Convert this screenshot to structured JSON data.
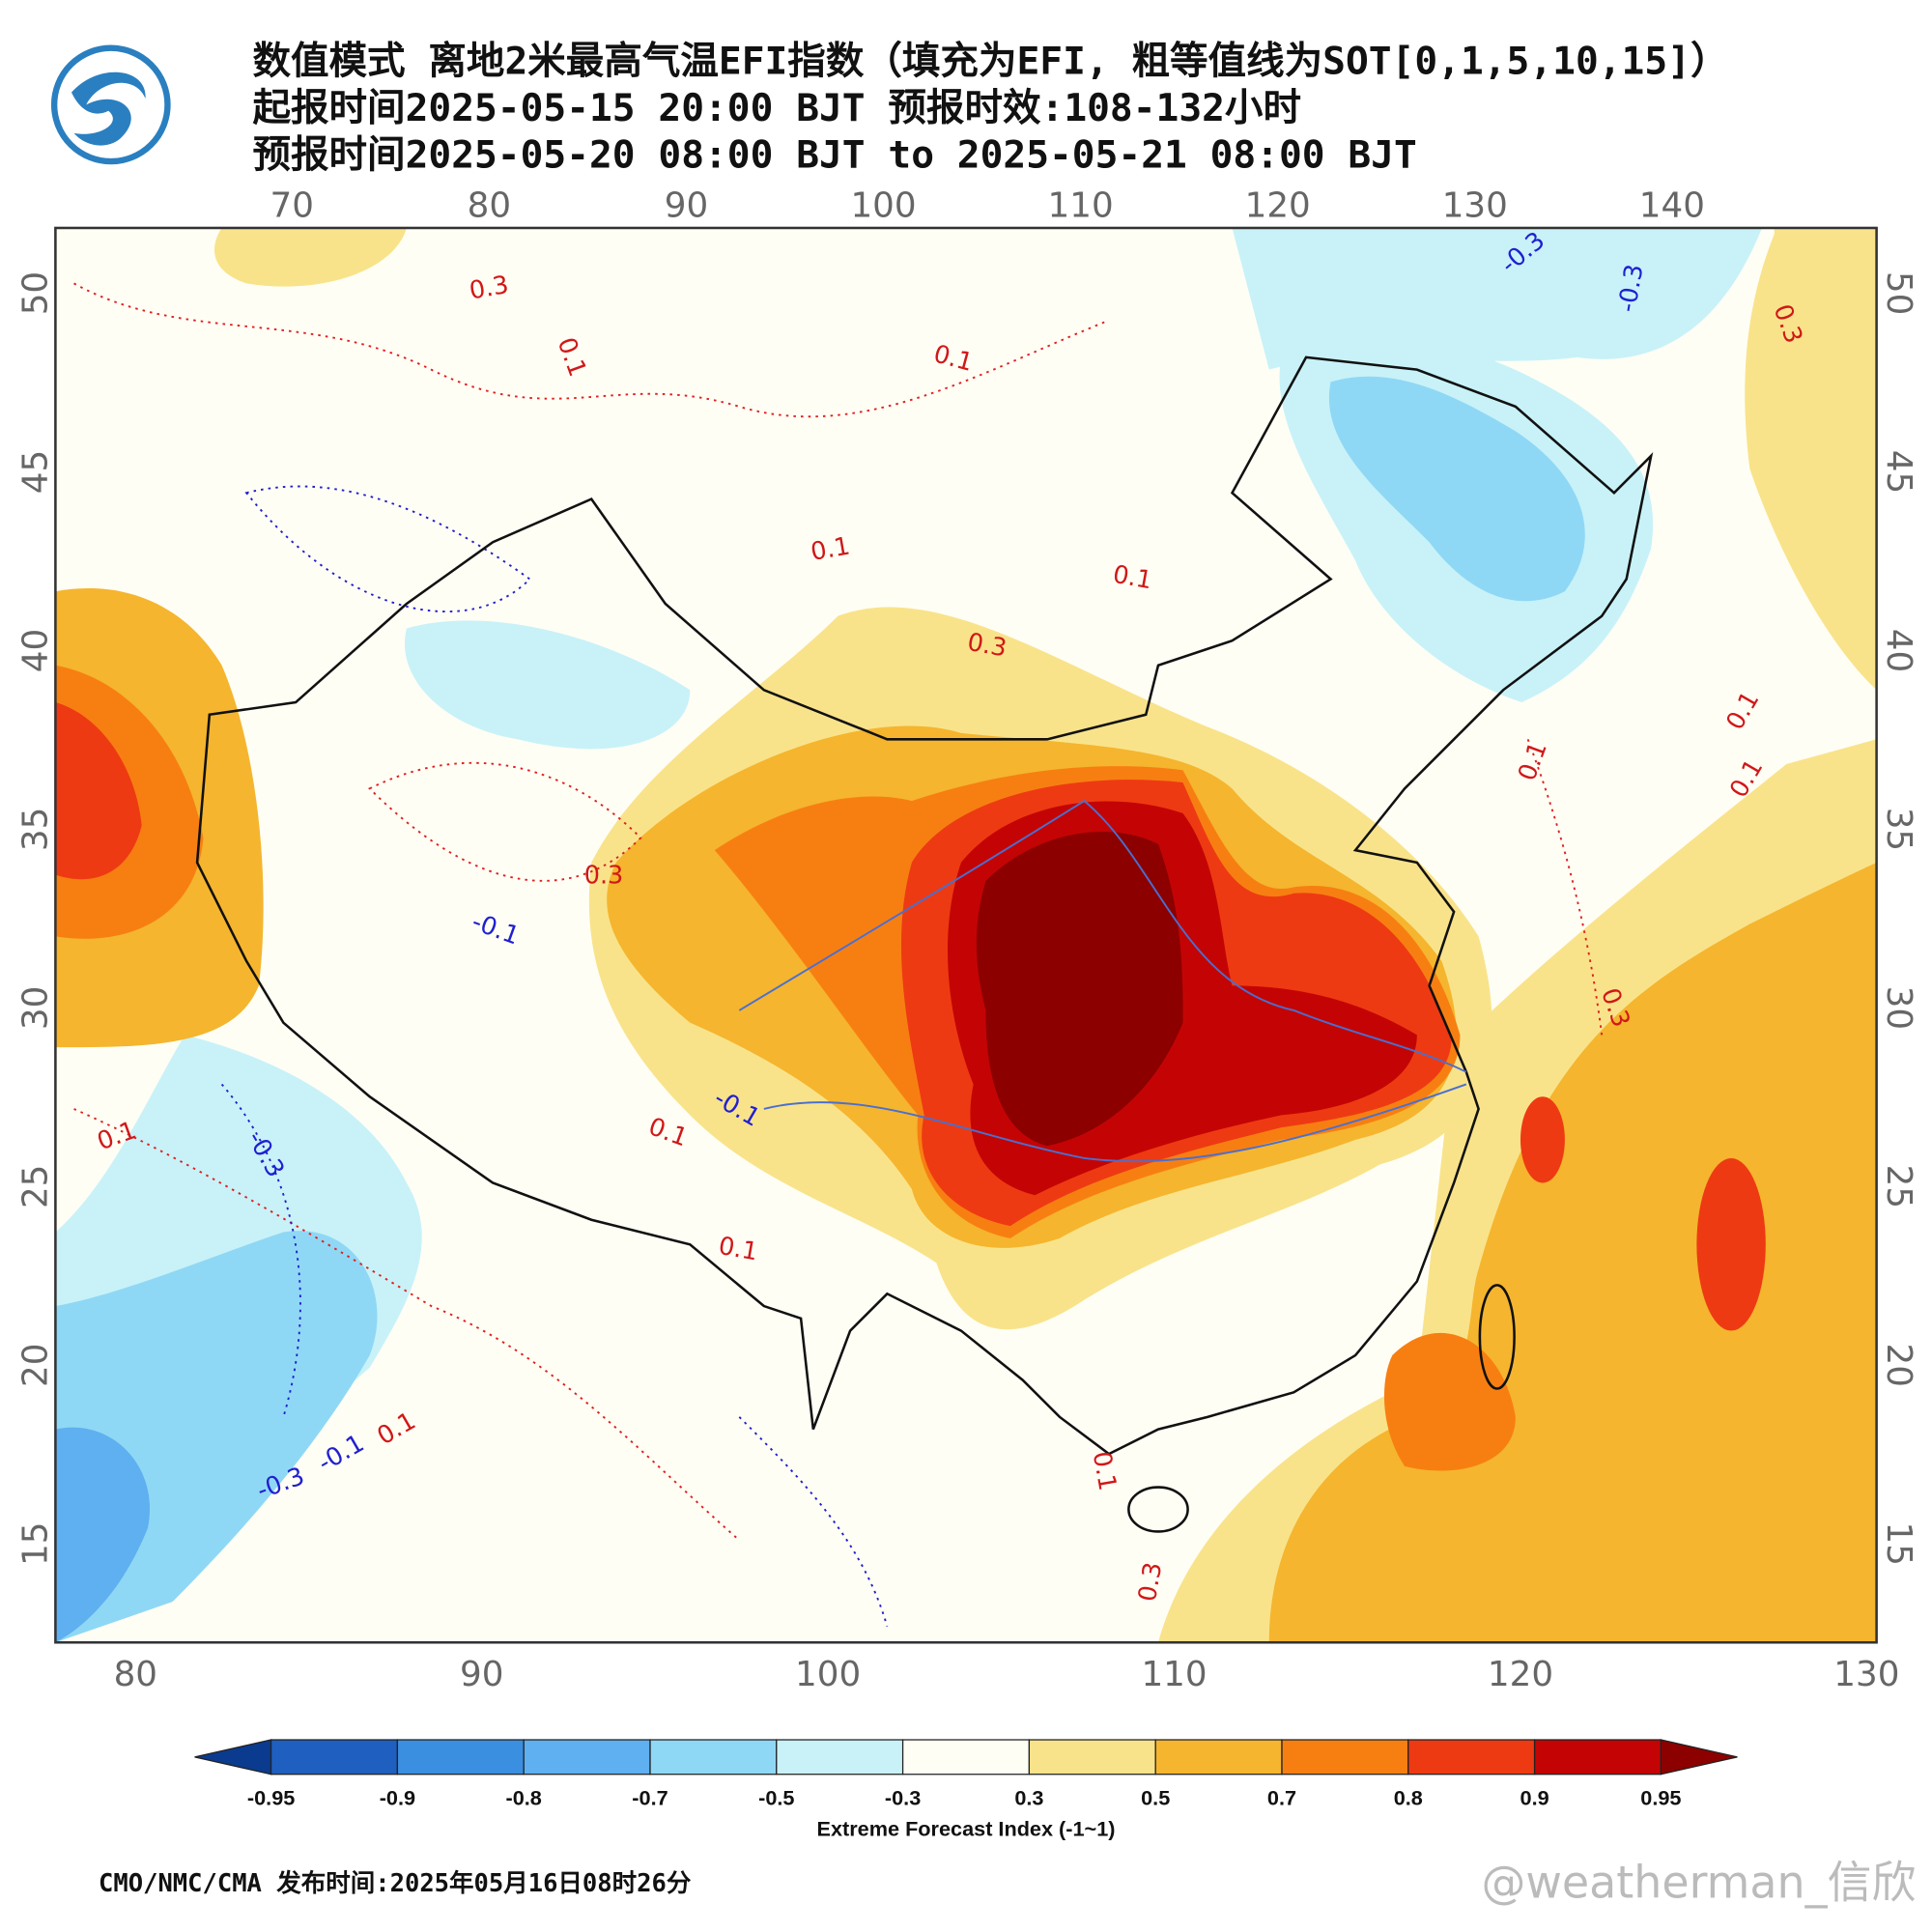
{
  "header": {
    "title": "数值模式 离地2米最高气温EFI指数（填充为EFI, 粗等值线为SOT[0,1,5,10,15]）",
    "issue_time": "起报时间2025-05-15 20:00 BJT 预报时效:108-132小时",
    "valid_time": "预报时间2025-05-20 08:00 BJT to 2025-05-21 08:00 BJT"
  },
  "map": {
    "top_lon_labels": [
      70,
      80,
      90,
      100,
      110,
      120,
      130,
      140
    ],
    "bottom_lon_labels": [
      80,
      90,
      100,
      110,
      120,
      130
    ],
    "left_lat_labels": [
      50,
      45,
      40,
      35,
      30,
      25,
      20,
      15
    ],
    "right_lat_labels": [
      50,
      45,
      40,
      35,
      30,
      25,
      20,
      15
    ],
    "contour_labels": [
      0.3,
      0.1,
      0.1,
      0.1,
      0.1,
      0.3,
      -0.3,
      -0.3,
      0.1,
      0.1,
      0.1,
      0.3,
      0.3,
      -0.1,
      0.1,
      -0.3,
      0.1,
      -0.1,
      0.1,
      0.1,
      0.3,
      -0.3,
      -0.1,
      0.1,
      0.3
    ]
  },
  "colorbar": {
    "ticks": [
      -0.95,
      -0.9,
      -0.8,
      -0.7,
      -0.5,
      -0.3,
      0.3,
      0.5,
      0.7,
      0.8,
      0.9,
      0.95
    ],
    "colors": [
      "#0b3b8f",
      "#1f5fbf",
      "#3a8fe0",
      "#5fb0f0",
      "#8fd8f5",
      "#c8f2f8",
      "#fffef5",
      "#f9e38a",
      "#f5b52e",
      "#f77f12",
      "#ee3a12",
      "#c40404",
      "#8c0000"
    ],
    "label": "Extreme Forecast Index (-1~1)"
  },
  "footer": {
    "source": "CMO/NMC/CMA  发布时间:2025年05月16日08时26分",
    "watermark": "@weatherman_信欣"
  }
}
